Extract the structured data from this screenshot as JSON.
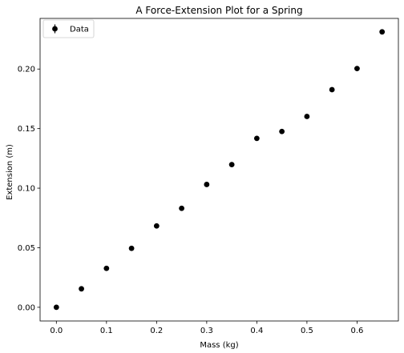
{
  "chart_data": {
    "type": "scatter",
    "title": "A Force-Extension Plot for a Spring",
    "xlabel": "Mass (kg)",
    "ylabel": "Extension (m)",
    "xlim": [
      -0.0325,
      0.6825
    ],
    "ylim": [
      -0.0115,
      0.2425
    ],
    "xticks": [
      0.0,
      0.1,
      0.2,
      0.3,
      0.4,
      0.5,
      0.6
    ],
    "xtick_labels": [
      "0.0",
      "0.1",
      "0.2",
      "0.3",
      "0.4",
      "0.5",
      "0.6"
    ],
    "yticks": [
      0.0,
      0.05,
      0.1,
      0.15,
      0.2
    ],
    "ytick_labels": [
      "0.00",
      "0.05",
      "0.10",
      "0.15",
      "0.20"
    ],
    "grid": false,
    "legend_position": "upper-left",
    "series": [
      {
        "name": "Data",
        "color": "#000000",
        "marker": "circle",
        "error_bars": true,
        "x": [
          0.0,
          0.05,
          0.1,
          0.15,
          0.2,
          0.25,
          0.3,
          0.35,
          0.4,
          0.45,
          0.5,
          0.55,
          0.6,
          0.65
        ],
        "y": [
          0.0,
          0.0155,
          0.0327,
          0.0495,
          0.0683,
          0.0831,
          0.1031,
          0.1198,
          0.1418,
          0.1476,
          0.1602,
          0.1827,
          0.2004,
          0.2312
        ]
      }
    ]
  }
}
